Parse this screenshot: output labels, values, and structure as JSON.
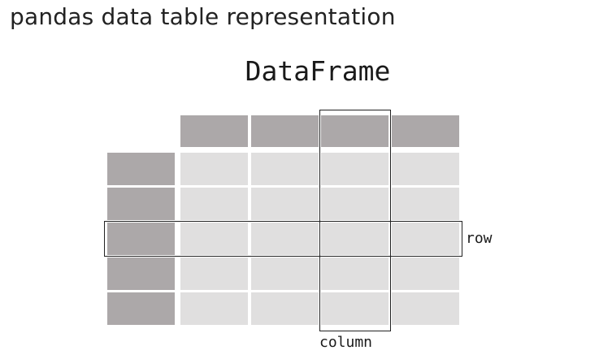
{
  "heading": "pandas data table representation",
  "diagram": {
    "title": "DataFrame",
    "row_label": "row",
    "column_label": "column",
    "num_columns": 4,
    "num_rows": 5,
    "highlighted_row": 3,
    "highlighted_column": 3,
    "colors": {
      "header_cell": "#aca8a9",
      "index_cell": "#aca8a9",
      "data_cell": "#e0dfdf",
      "outline": "#222222"
    }
  }
}
